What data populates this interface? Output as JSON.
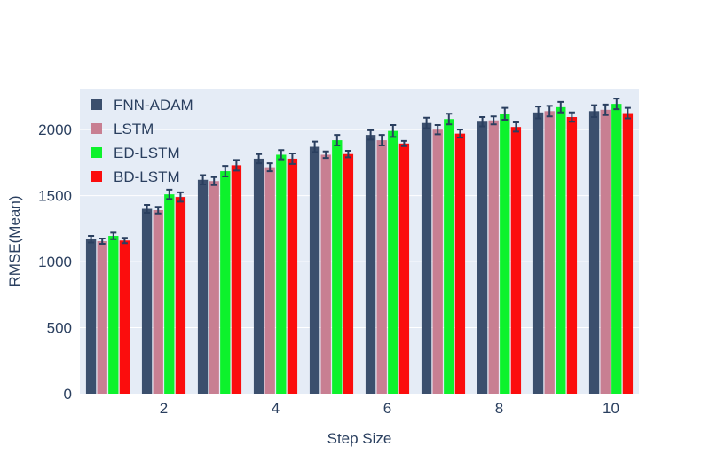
{
  "chart_data": {
    "type": "bar",
    "title": "",
    "xlabel": "Step Size",
    "ylabel": "RMSE(Mean)",
    "x": [
      1,
      2,
      3,
      4,
      5,
      6,
      7,
      8,
      9,
      10
    ],
    "x_ticks": [
      2,
      4,
      6,
      8,
      10
    ],
    "x_tick_labels": [
      "2",
      "4",
      "6",
      "8",
      "10"
    ],
    "xlim": [
      0.5,
      10.5
    ],
    "y_ticks": [
      0,
      500,
      1000,
      1500,
      2000
    ],
    "y_tick_labels": [
      "0",
      "500",
      "1000",
      "1500",
      "2000"
    ],
    "ylim": [
      0,
      2310
    ],
    "grid": true,
    "legend_position": "top-left",
    "series": [
      {
        "name": "FNN-ADAM",
        "color": "#3b4f6d",
        "values": [
          1170,
          1400,
          1620,
          1780,
          1870,
          1960,
          2050,
          2060,
          2130,
          2140
        ],
        "errors": [
          25,
          30,
          35,
          35,
          40,
          35,
          40,
          35,
          45,
          45
        ]
      },
      {
        "name": "LSTM",
        "color": "#c87f92",
        "values": [
          1155,
          1390,
          1610,
          1715,
          1810,
          1920,
          2000,
          2070,
          2140,
          2150
        ],
        "errors": [
          20,
          25,
          30,
          30,
          25,
          40,
          35,
          30,
          40,
          40
        ]
      },
      {
        "name": "ED-LSTM",
        "color": "#0df22c",
        "values": [
          1195,
          1510,
          1685,
          1810,
          1920,
          1990,
          2080,
          2120,
          2170,
          2195
        ],
        "errors": [
          25,
          35,
          40,
          35,
          40,
          45,
          40,
          45,
          40,
          40
        ]
      },
      {
        "name": "BD-LSTM",
        "color": "#fb0d0d",
        "values": [
          1160,
          1490,
          1730,
          1780,
          1815,
          1895,
          1970,
          2020,
          2095,
          2125
        ],
        "errors": [
          20,
          35,
          40,
          40,
          25,
          20,
          30,
          35,
          35,
          40
        ]
      }
    ]
  },
  "colors": {
    "plot_background": "#e5ecf6",
    "gridline": "#ffffff",
    "text": "#2a3f5f",
    "error_bar": "#2a3f5f"
  }
}
